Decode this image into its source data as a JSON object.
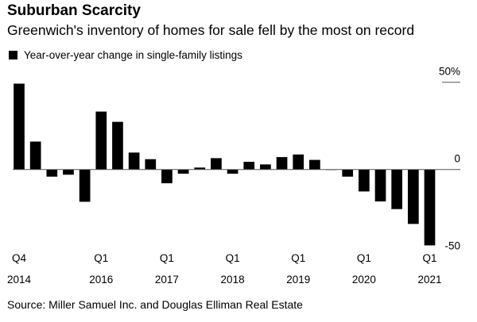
{
  "header": {
    "title": "Suburban Scarcity",
    "subtitle": "Greenwich's inventory of homes for sale fell by the most on record"
  },
  "legend": {
    "label": "Year-over-year change in single-family listings",
    "color": "#000000"
  },
  "source": "Source: Miller Samuel Inc. and Douglas Elliman Real Estate",
  "chart_data": {
    "type": "bar",
    "title": "Suburban Scarcity",
    "subtitle": "Greenwich's inventory of homes for sale fell by the most on record",
    "xlabel": "",
    "ylabel": "Year-over-year change in single-family listings (%)",
    "ylim": [
      -50,
      50
    ],
    "yticks": [
      {
        "value": 50,
        "label": "50%"
      },
      {
        "value": 0,
        "label": "0"
      },
      {
        "value": -50,
        "label": "-50"
      }
    ],
    "categories": [
      "Q4 2014",
      "Q1 2015",
      "Q2 2015",
      "Q3 2015",
      "Q4 2015",
      "Q1 2016",
      "Q2 2016",
      "Q3 2016",
      "Q4 2016",
      "Q1 2017",
      "Q2 2017",
      "Q3 2017",
      "Q4 2017",
      "Q1 2018",
      "Q2 2018",
      "Q3 2018",
      "Q4 2018",
      "Q1 2019",
      "Q2 2019",
      "Q3 2019",
      "Q4 2019",
      "Q1 2020",
      "Q2 2020",
      "Q3 2020",
      "Q4 2020",
      "Q1 2021"
    ],
    "values": [
      49.2,
      16.0,
      -4.1,
      -3.0,
      -18.5,
      33.2,
      27.3,
      9.7,
      5.9,
      -7.9,
      -2.4,
      1.1,
      6.5,
      -2.4,
      4.4,
      2.9,
      7.1,
      8.6,
      5.5,
      -0.2,
      -4.1,
      -12.6,
      -18.3,
      -22.7,
      -31.2,
      -43.5
    ],
    "xtick_labels": [
      {
        "index": 0,
        "q": "Q4",
        "year": "2014"
      },
      {
        "index": 5,
        "q": "Q1",
        "year": "2016"
      },
      {
        "index": 9,
        "q": "Q1",
        "year": "2017"
      },
      {
        "index": 13,
        "q": "Q1",
        "year": "2018"
      },
      {
        "index": 17,
        "q": "Q1",
        "year": "2019"
      },
      {
        "index": 21,
        "q": "Q1",
        "year": "2020"
      },
      {
        "index": 25,
        "q": "Q1",
        "year": "2021"
      }
    ],
    "grid": false,
    "legend_position": "top-left",
    "bar_color": "#000000"
  }
}
